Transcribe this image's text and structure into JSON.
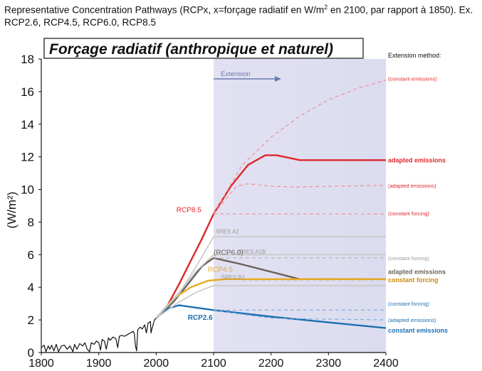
{
  "caption": {
    "part1": "Representative Concentration Pathways (RCPx, x=forçage radiatif en W/m",
    "sup": "2",
    "part2": " en 2100, par rapport à 1850). Ex. RCP2.6, RCP4.5, RCP6.0, RCP8.5"
  },
  "colors": {
    "rcp85": "#e0262c",
    "rcp85_light": "#f08a8a",
    "rcp60": "#6d6259",
    "rcp45": "#e8a922",
    "rcp26": "#1b6fb3",
    "sres": "#c8c8c8",
    "historical": "#111111",
    "extension_band": "#dcdcf0",
    "extension_arrow": "#6a7bb0"
  },
  "chart_data": {
    "type": "line",
    "title": "Forçage radiatif (anthropique et naturel)",
    "ylabel": "(W/m²)",
    "xlabel": "",
    "xlim": [
      1800,
      2400
    ],
    "ylim": [
      0,
      18
    ],
    "x_ticks": [
      "1800",
      "1900",
      "2000",
      "2100",
      "2200",
      "2300",
      "2400"
    ],
    "y_ticks": [
      "0",
      "2",
      "4",
      "6",
      "8",
      "10",
      "12",
      "14",
      "16",
      "18"
    ],
    "extension_band": {
      "from": 2100,
      "to": 2400,
      "label": "Extension"
    },
    "extension_method_title": "Extension method:",
    "series": [
      {
        "name": "RCP8.5",
        "style": "solid",
        "points": [
          [
            2000,
            2.1
          ],
          [
            2020,
            2.9
          ],
          [
            2040,
            4.2
          ],
          [
            2060,
            5.6
          ],
          [
            2080,
            7.0
          ],
          [
            2100,
            8.5
          ],
          [
            2130,
            10.2
          ],
          [
            2160,
            11.5
          ],
          [
            2190,
            12.1
          ],
          [
            2210,
            12.1
          ],
          [
            2250,
            11.8
          ],
          [
            2400,
            11.8
          ]
        ]
      },
      {
        "name": "",
        "style": "dashed",
        "points": [
          [
            2100,
            8.5
          ],
          [
            2140,
            10.2
          ],
          [
            2160,
            10.35
          ],
          [
            2200,
            10.2
          ],
          [
            2240,
            10.15
          ],
          [
            2400,
            10.25
          ]
        ]
      },
      {
        "name": "",
        "style": "dashed",
        "points": [
          [
            2100,
            8.5
          ],
          [
            2150,
            11.5
          ],
          [
            2200,
            13.2
          ],
          [
            2250,
            14.5
          ],
          [
            2300,
            15.5
          ],
          [
            2350,
            16.2
          ],
          [
            2400,
            16.7
          ]
        ]
      },
      {
        "name": "",
        "style": "dashed",
        "points": [
          [
            2100,
            8.5
          ],
          [
            2400,
            8.5
          ]
        ]
      },
      {
        "name": "RCP6.0",
        "style": "solid",
        "points": [
          [
            2000,
            2.1
          ],
          [
            2030,
            3.1
          ],
          [
            2060,
            4.4
          ],
          [
            2080,
            5.3
          ],
          [
            2100,
            5.8
          ],
          [
            2150,
            5.4
          ],
          [
            2250,
            4.5
          ],
          [
            2400,
            4.5
          ]
        ]
      },
      {
        "name": "",
        "style": "dashed",
        "points": [
          [
            2100,
            5.8
          ],
          [
            2150,
            5.8
          ],
          [
            2400,
            5.8
          ]
        ]
      },
      {
        "name": "RCP4.5",
        "style": "solid",
        "points": [
          [
            2000,
            2.1
          ],
          [
            2030,
            3.3
          ],
          [
            2060,
            4.0
          ],
          [
            2090,
            4.4
          ],
          [
            2120,
            4.5
          ],
          [
            2400,
            4.5
          ]
        ]
      },
      {
        "name": "",
        "style": "dashed",
        "points": [
          [
            2150,
            4.4
          ],
          [
            2400,
            4.4
          ]
        ]
      },
      {
        "name": "RCP2.6",
        "style": "solid",
        "points": [
          [
            2000,
            2.1
          ],
          [
            2020,
            2.7
          ],
          [
            2040,
            2.9
          ],
          [
            2060,
            2.8
          ],
          [
            2100,
            2.6
          ],
          [
            2200,
            2.2
          ],
          [
            2300,
            1.85
          ],
          [
            2400,
            1.5
          ]
        ]
      },
      {
        "name": "",
        "style": "dashed",
        "points": [
          [
            2100,
            2.6
          ],
          [
            2400,
            2.6
          ]
        ]
      },
      {
        "name": "",
        "style": "dashed",
        "points": [
          [
            2100,
            2.6
          ],
          [
            2200,
            2.1
          ],
          [
            2400,
            2.0
          ]
        ]
      },
      {
        "name": "SRES A2",
        "style": "sres",
        "points": [
          [
            2000,
            2.1
          ],
          [
            2040,
            3.6
          ],
          [
            2070,
            5.3
          ],
          [
            2100,
            7.1
          ],
          [
            2400,
            7.1
          ]
        ]
      },
      {
        "name": "SRES A1B",
        "style": "sres",
        "points": [
          [
            2000,
            2.1
          ],
          [
            2040,
            3.7
          ],
          [
            2070,
            5.0
          ],
          [
            2100,
            6.0
          ],
          [
            2150,
            6.0
          ],
          [
            2400,
            6.0
          ]
        ]
      },
      {
        "name": "SRES B1",
        "style": "sres",
        "points": [
          [
            2000,
            2.1
          ],
          [
            2040,
            3.1
          ],
          [
            2070,
            3.7
          ],
          [
            2100,
            4.1
          ],
          [
            2400,
            4.1
          ]
        ]
      },
      {
        "name": "",
        "style": "historical",
        "points": [
          [
            1800,
            0.3
          ],
          [
            1805,
            0.45
          ],
          [
            1808,
            0.05
          ],
          [
            1812,
            0.4
          ],
          [
            1815,
            0.2
          ],
          [
            1818,
            0.45
          ],
          [
            1822,
            0.1
          ],
          [
            1826,
            0.5
          ],
          [
            1830,
            0.05
          ],
          [
            1835,
            0.4
          ],
          [
            1840,
            0.45
          ],
          [
            1845,
            0.2
          ],
          [
            1850,
            0.4
          ],
          [
            1855,
            0.05
          ],
          [
            1858,
            0.5
          ],
          [
            1862,
            0.2
          ],
          [
            1867,
            0.55
          ],
          [
            1872,
            0.4
          ],
          [
            1876,
            0.6
          ],
          [
            1880,
            0.2
          ],
          [
            1884,
            0.05
          ],
          [
            1887,
            0.6
          ],
          [
            1892,
            0.5
          ],
          [
            1896,
            0.7
          ],
          [
            1900,
            0.6
          ],
          [
            1903,
            0.15
          ],
          [
            1906,
            0.8
          ],
          [
            1910,
            0.7
          ],
          [
            1913,
            0.2
          ],
          [
            1917,
            0.9
          ],
          [
            1920,
            0.75
          ],
          [
            1925,
            0.95
          ],
          [
            1930,
            0.85
          ],
          [
            1933,
            0.3
          ],
          [
            1936,
            1.0
          ],
          [
            1940,
            1.05
          ],
          [
            1945,
            1.0
          ],
          [
            1950,
            1.1
          ],
          [
            1955,
            1.2
          ],
          [
            1960,
            1.3
          ],
          [
            1962,
            1.15
          ],
          [
            1964,
            0.4
          ],
          [
            1966,
            0.1
          ],
          [
            1968,
            1.4
          ],
          [
            1972,
            1.55
          ],
          [
            1976,
            1.45
          ],
          [
            1980,
            1.7
          ],
          [
            1983,
            1.2
          ],
          [
            1986,
            1.8
          ],
          [
            1990,
            1.9
          ],
          [
            1991,
            1.2
          ],
          [
            1993,
            1.5
          ],
          [
            1997,
            2.0
          ],
          [
            2000,
            2.1
          ]
        ]
      }
    ],
    "annotations": [
      {
        "text": "RCP8.5",
        "x": 2057,
        "y": 8.6,
        "kind": "rcp85"
      },
      {
        "text": "(RCP6.0)",
        "x": 2100,
        "y": 6.0,
        "kind": "rcp60"
      },
      {
        "text": "RCP4.5",
        "x": 2090,
        "y": 4.95,
        "kind": "rcp45"
      },
      {
        "text": "RCP2.6",
        "x": 2055,
        "y": 2.0,
        "kind": "rcp26"
      },
      {
        "text": "SRES A2",
        "x": 2103,
        "y": 7.3,
        "kind": "sres"
      },
      {
        "text": "SRES A1B",
        "x": 2143,
        "y": 6.05,
        "kind": "sres"
      },
      {
        "text": "SRES B1",
        "x": 2113,
        "y": 4.5,
        "kind": "sres"
      }
    ],
    "right_labels": [
      {
        "text": "(constant emissions)",
        "y": 16.8,
        "kind": "rcp85_small"
      },
      {
        "text": "adapted emissions",
        "y": 11.8,
        "kind": "rcp85_bold"
      },
      {
        "text": "(adapted emissions)",
        "y": 10.25,
        "kind": "rcp85_small"
      },
      {
        "text": "(constant forcing)",
        "y": 8.55,
        "kind": "rcp85_small"
      },
      {
        "text": "(constant forcing)",
        "y": 5.8,
        "kind": "sres_small"
      },
      {
        "text": "adapted emissions",
        "y": 4.95,
        "kind": "rcp60_bold"
      },
      {
        "text": "constant forcing",
        "y": 4.45,
        "kind": "rcp45_bold"
      },
      {
        "text": "(constant forcing)",
        "y": 3.0,
        "kind": "rcp26_small"
      },
      {
        "text": "(adapted emissions)",
        "y": 2.0,
        "kind": "rcp26_small"
      },
      {
        "text": "constant emissions",
        "y": 1.35,
        "kind": "rcp26_bold"
      }
    ]
  }
}
